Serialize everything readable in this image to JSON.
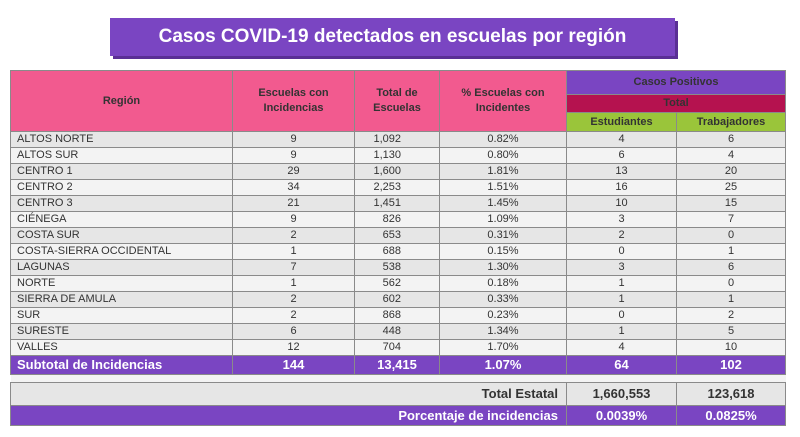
{
  "title": "Casos COVID-19 detectados en escuelas por región",
  "headers": {
    "region": "Región",
    "escuelas_incidencias": "Escuelas con Incidencias",
    "total_escuelas": "Total de Escuelas",
    "pct_escuelas": "% Escuelas con Incidentes",
    "casos_positivos": "Casos Positivos",
    "total": "Total",
    "estudiantes": "Estudiantes",
    "trabajadores": "Trabajadores"
  },
  "rows": [
    {
      "region": "ALTOS NORTE",
      "incid": "9",
      "total": "1,092",
      "pct": "0.82%",
      "est": "4",
      "trab": "6"
    },
    {
      "region": "ALTOS SUR",
      "incid": "9",
      "total": "1,130",
      "pct": "0.80%",
      "est": "6",
      "trab": "4"
    },
    {
      "region": "CENTRO 1",
      "incid": "29",
      "total": "1,600",
      "pct": "1.81%",
      "est": "13",
      "trab": "20"
    },
    {
      "region": "CENTRO 2",
      "incid": "34",
      "total": "2,253",
      "pct": "1.51%",
      "est": "16",
      "trab": "25"
    },
    {
      "region": "CENTRO 3",
      "incid": "21",
      "total": "1,451",
      "pct": "1.45%",
      "est": "10",
      "trab": "15"
    },
    {
      "region": "CIÉNEGA",
      "incid": "9",
      "total": "826",
      "pct": "1.09%",
      "est": "3",
      "trab": "7"
    },
    {
      "region": "COSTA SUR",
      "incid": "2",
      "total": "653",
      "pct": "0.31%",
      "est": "2",
      "trab": "0"
    },
    {
      "region": "COSTA-SIERRA OCCIDENTAL",
      "incid": "1",
      "total": "688",
      "pct": "0.15%",
      "est": "0",
      "trab": "1"
    },
    {
      "region": "LAGUNAS",
      "incid": "7",
      "total": "538",
      "pct": "1.30%",
      "est": "3",
      "trab": "6"
    },
    {
      "region": "NORTE",
      "incid": "1",
      "total": "562",
      "pct": "0.18%",
      "est": "1",
      "trab": "0"
    },
    {
      "region": "SIERRA DE AMULA",
      "incid": "2",
      "total": "602",
      "pct": "0.33%",
      "est": "1",
      "trab": "1"
    },
    {
      "region": "SUR",
      "incid": "2",
      "total": "868",
      "pct": "0.23%",
      "est": "0",
      "trab": "2"
    },
    {
      "region": "SURESTE",
      "incid": "6",
      "total": "448",
      "pct": "1.34%",
      "est": "1",
      "trab": "5"
    },
    {
      "region": "VALLES",
      "incid": "12",
      "total": "704",
      "pct": "1.70%",
      "est": "4",
      "trab": "10"
    }
  ],
  "subtotal": {
    "label": "Subtotal de Incidencias",
    "incid": "144",
    "total": "13,415",
    "pct": "1.07%",
    "est": "64",
    "trab": "102"
  },
  "estatal": {
    "label": "Total Estatal",
    "est": "1,660,553",
    "trab": "123,618"
  },
  "porcentaje": {
    "label": "Porcentaje de incidencias",
    "est": "0.0039%",
    "trab": "0.0825%"
  },
  "colors": {
    "purple": "#7a45c2",
    "pink": "#f25a8f",
    "crimson": "#b5124f",
    "green": "#9ac53a"
  }
}
